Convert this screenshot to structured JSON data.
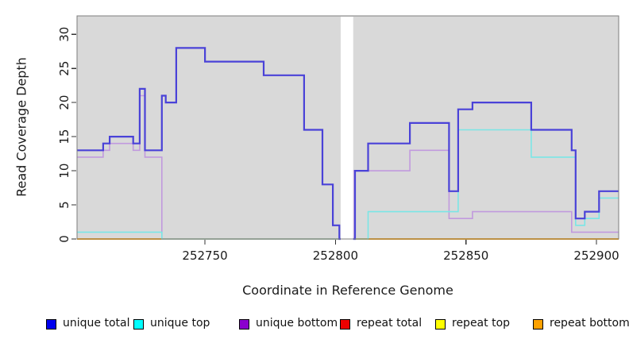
{
  "chart_data": {
    "type": "line",
    "subtype": "step-coverage-plot",
    "title": "",
    "xlabel": "Coordinate in Reference Genome",
    "ylabel": "Read Coverage Depth",
    "xlim": [
      252701,
      252908.5
    ],
    "ylim": [
      0,
      32.7
    ],
    "x_ticks": [
      252750,
      252800,
      252850,
      252900
    ],
    "y_ticks": [
      0,
      5,
      10,
      15,
      20,
      25,
      30
    ],
    "grid": false,
    "legend_position": "bottom",
    "plot_background": "#d9d9d9",
    "border_color": "#7d7d7d",
    "tick_color": "#333333",
    "gap": {
      "from": 252802,
      "to": 252806.8
    },
    "series": [
      {
        "name": "unique total",
        "color": "#4a42d8",
        "swatch": "#0000ee",
        "width": 2.2,
        "points": [
          [
            252701,
            13
          ],
          [
            252711,
            14
          ],
          [
            252713.5,
            15
          ],
          [
            252722.5,
            14
          ],
          [
            252725,
            22
          ],
          [
            252727,
            13
          ],
          [
            252733.5,
            21
          ],
          [
            252735,
            20
          ],
          [
            252739,
            28
          ],
          [
            252750,
            26
          ],
          [
            252772.5,
            24
          ],
          [
            252788,
            16
          ],
          [
            252795,
            8
          ],
          [
            252799,
            2
          ],
          [
            252801.5,
            0
          ],
          [
            252807.5,
            10
          ],
          [
            252812.5,
            14
          ],
          [
            252828.5,
            17
          ],
          [
            252843.5,
            7
          ],
          [
            252847,
            19
          ],
          [
            252852.5,
            20
          ],
          [
            252875,
            16
          ],
          [
            252890.5,
            13
          ],
          [
            252892,
            3
          ],
          [
            252895.5,
            4
          ],
          [
            252901,
            7
          ],
          [
            252908.5,
            7
          ]
        ]
      },
      {
        "name": "unique top",
        "color": "#7ae6e6",
        "swatch": "#00ffff",
        "width": 1.6,
        "points": [
          [
            252701,
            1
          ],
          [
            252733.5,
            0
          ],
          [
            252812.5,
            4
          ],
          [
            252847,
            16
          ],
          [
            252875,
            12
          ],
          [
            252892,
            2
          ],
          [
            252895.5,
            3
          ],
          [
            252901,
            6
          ],
          [
            252908.5,
            6
          ]
        ]
      },
      {
        "name": "unique bottom",
        "color": "#c19ade",
        "swatch": "#8b00ce",
        "width": 1.6,
        "points": [
          [
            252701,
            12
          ],
          [
            252711,
            13
          ],
          [
            252713.5,
            14
          ],
          [
            252722.5,
            13
          ],
          [
            252725,
            21
          ],
          [
            252727,
            12
          ],
          [
            252733.5,
            0
          ],
          [
            252806.8,
            10
          ],
          [
            252828.5,
            13
          ],
          [
            252843.5,
            3
          ],
          [
            252852.5,
            4
          ],
          [
            252890.5,
            1
          ],
          [
            252908.5,
            1
          ]
        ]
      },
      {
        "name": "repeat total",
        "color": "#dd0000",
        "swatch": "#ee0000",
        "width": 1.5,
        "points": [
          [
            252701,
            0
          ],
          [
            252908.5,
            0
          ]
        ]
      },
      {
        "name": "repeat top",
        "color": "#ffff00",
        "swatch": "#ffff00",
        "width": 1.5,
        "points": [
          [
            252701,
            0
          ],
          [
            252908.5,
            0
          ]
        ]
      },
      {
        "name": "repeat bottom",
        "color": "#ff9d00",
        "swatch": "#ffa200",
        "width": 1.8,
        "points": [
          [
            252701,
            0
          ],
          [
            252908.5,
            0
          ]
        ]
      }
    ]
  }
}
